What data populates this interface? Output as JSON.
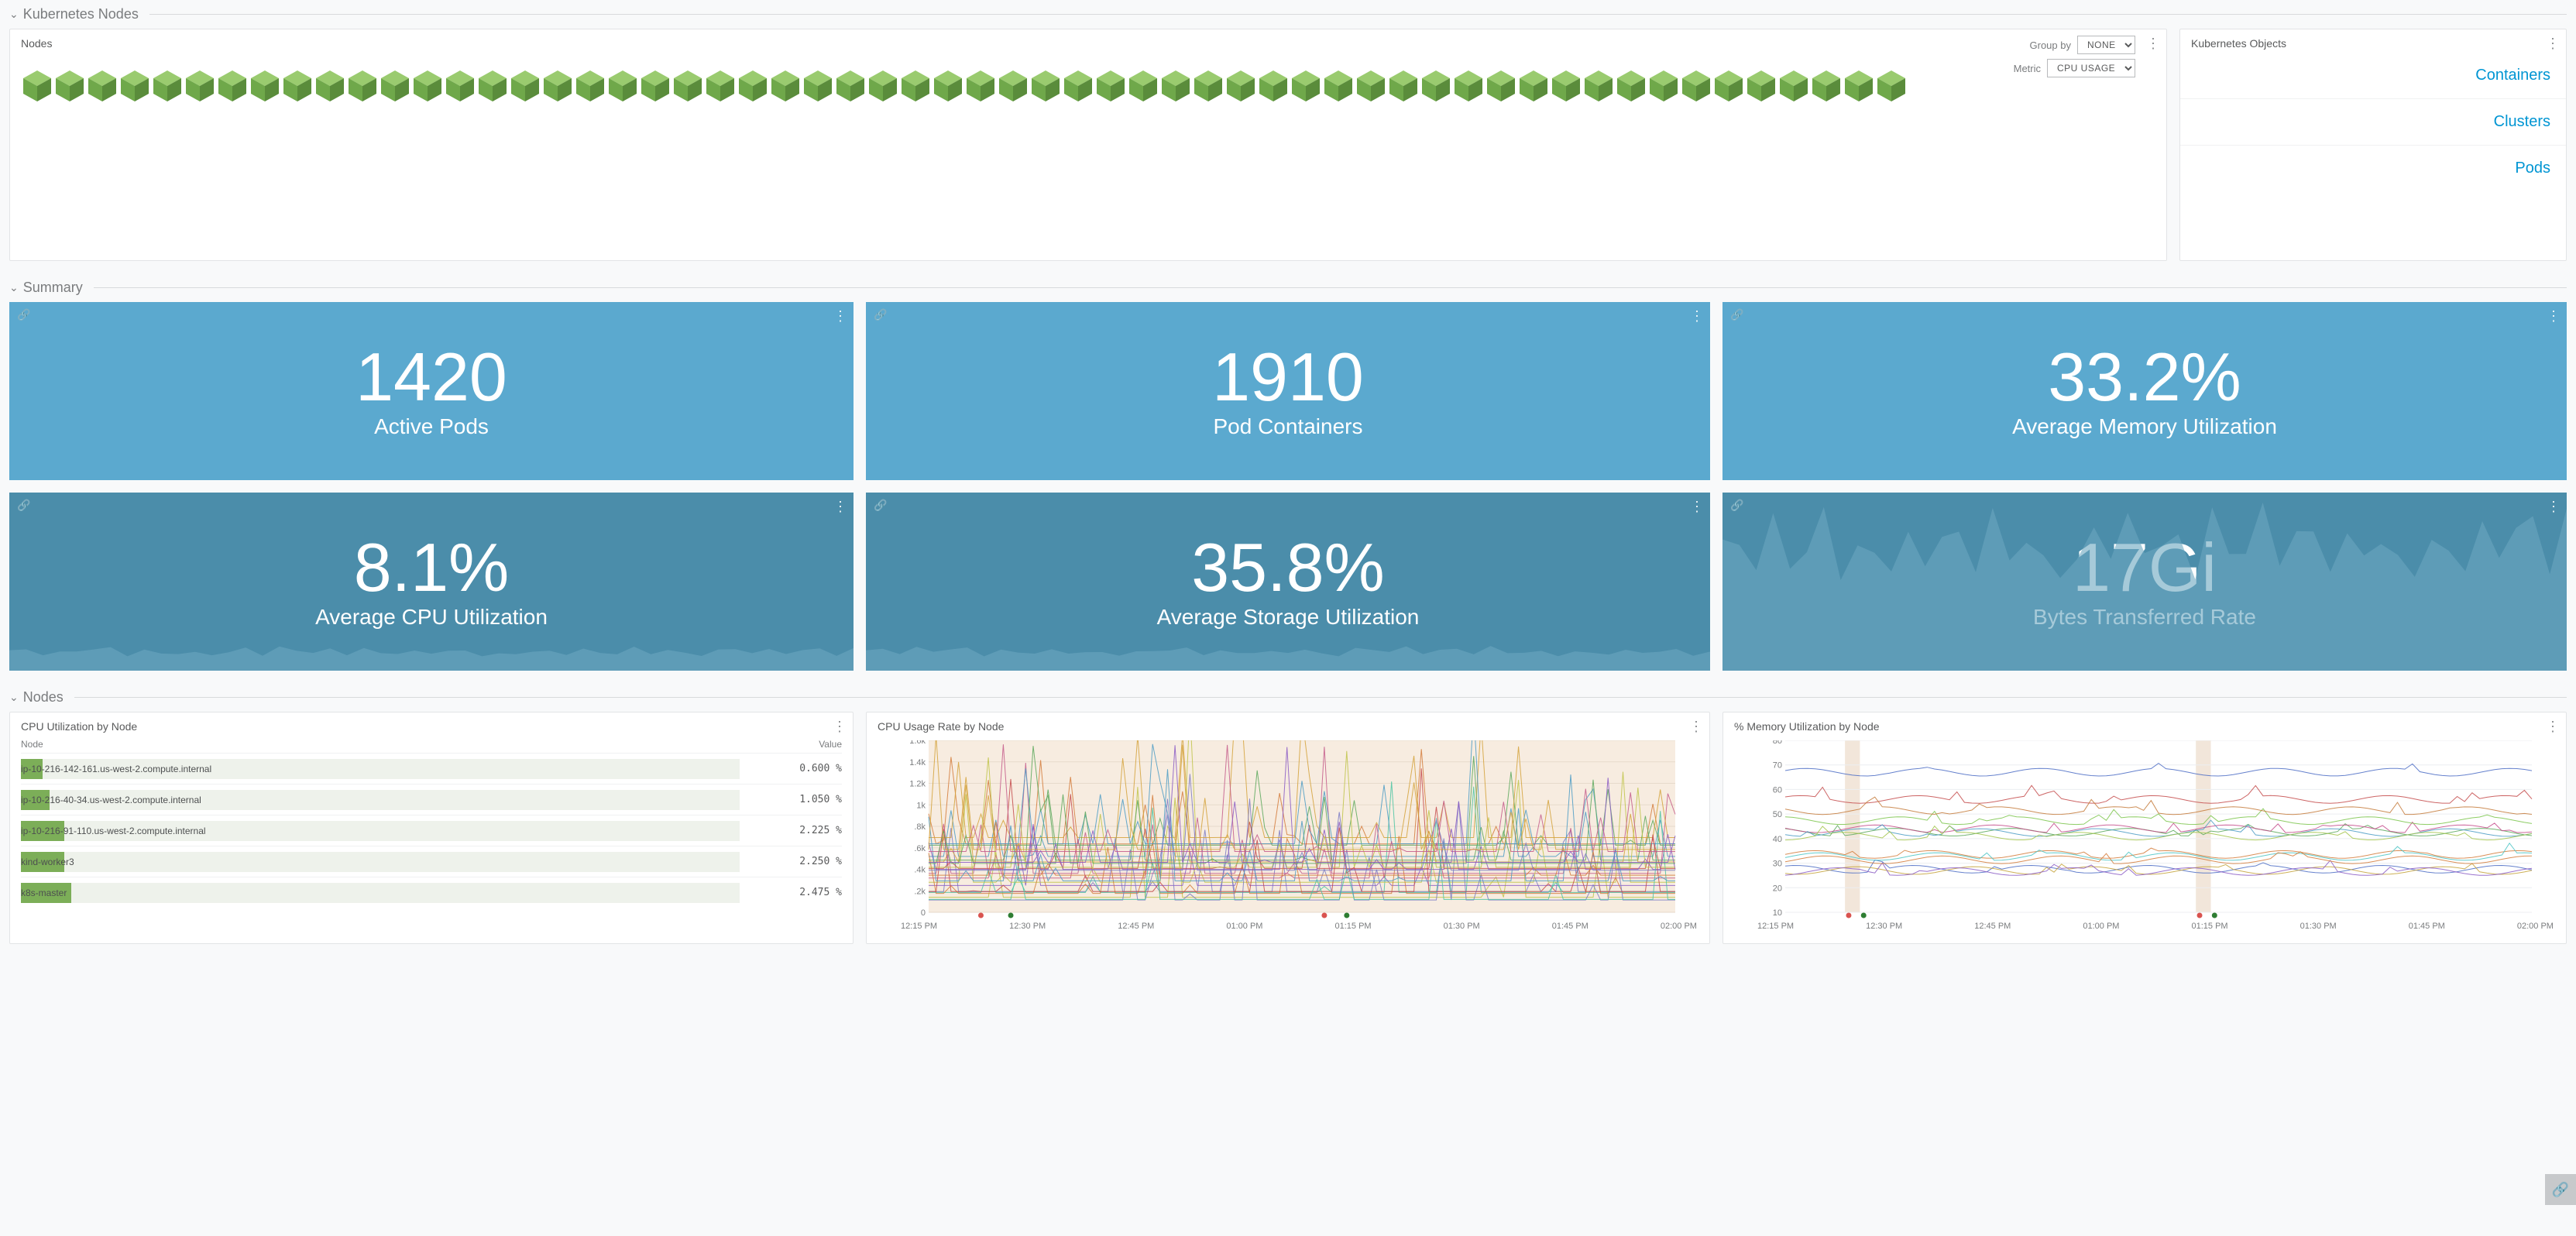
{
  "sections": {
    "kubernetes_nodes": "Kubernetes Nodes",
    "summary": "Summary",
    "nodes": "Nodes"
  },
  "nodes_panel": {
    "title": "Nodes",
    "group_by_label": "Group by",
    "group_by_value": "NONE",
    "metric_label": "Metric",
    "metric_value": "CPU USAGE",
    "cube_count": 58,
    "cube_faces": {
      "top": "#9acb6f",
      "left": "#6fa84a",
      "right": "#5a8c3b"
    }
  },
  "objects_panel": {
    "title": "Kubernetes Objects",
    "links": [
      "Containers",
      "Clusters",
      "Pods"
    ]
  },
  "metrics_row1": [
    {
      "value": "1420",
      "label": "Active Pods",
      "bg": "#5ba9cf",
      "type": "flat"
    },
    {
      "value": "1910",
      "label": "Pod Containers",
      "bg": "#5ba9cf",
      "type": "flat"
    },
    {
      "value": "33.2%",
      "label": "Average Memory Utilization",
      "bg": "#5ba9cf",
      "type": "flat"
    }
  ],
  "metrics_row2": [
    {
      "value": "8.1%",
      "label": "Average CPU Utilization",
      "bg": "#4b8daa",
      "type": "spark_low"
    },
    {
      "value": "35.8%",
      "label": "Average Storage Utilization",
      "bg": "#4b8daa",
      "type": "spark_low"
    },
    {
      "value": "17Gi",
      "label": "Bytes Transferred Rate",
      "bg": "#4b8daa",
      "type": "spark_high"
    }
  ],
  "spark_overlay_color": "#6aa7c0",
  "cpu_by_node": {
    "title": "CPU Utilization by Node",
    "col_node": "Node",
    "col_value": "Value",
    "bar_bg": "#eef2eb",
    "bar_fill": "#7cae58",
    "rows": [
      {
        "name": "ip-10-216-142-161.us-west-2.compute.internal",
        "value": "0.600 %",
        "pct": 3
      },
      {
        "name": "ip-10-216-40-34.us-west-2.compute.internal",
        "value": "1.050 %",
        "pct": 4
      },
      {
        "name": "ip-10-216-91-110.us-west-2.compute.internal",
        "value": "2.225 %",
        "pct": 6
      },
      {
        "name": "kind-worker3",
        "value": "2.250 %",
        "pct": 6
      },
      {
        "name": "k8s-master",
        "value": "2.475 %",
        "pct": 7
      }
    ]
  },
  "cpu_rate_chart": {
    "title": "CPU Usage Rate by Node",
    "y_ticks": [
      "1.6k",
      "1.4k",
      "1.2k",
      "1k",
      ".8k",
      ".6k",
      ".4k",
      ".2k",
      "0"
    ],
    "ylim": [
      0,
      1600
    ],
    "x_ticks": [
      "12:15 PM",
      "12:30 PM",
      "12:45 PM",
      "01:00 PM",
      "01:15 PM",
      "01:30 PM",
      "01:45 PM",
      "02:00 PM"
    ],
    "bg": "#f7ece0",
    "grid": "#e7dacb",
    "line_colors": [
      "#c0c448",
      "#d37b3a",
      "#4a9bc4",
      "#7a7ac4",
      "#c45a8a",
      "#5aa85a",
      "#d4a23a",
      "#8a5ac4",
      "#c44a4a",
      "#4ac4a2"
    ],
    "markers": [
      {
        "x": 0.07,
        "c": "#d9534f"
      },
      {
        "x": 0.11,
        "c": "#2e7d32"
      },
      {
        "x": 0.53,
        "c": "#d9534f"
      },
      {
        "x": 0.56,
        "c": "#2e7d32"
      }
    ]
  },
  "mem_util_chart": {
    "title": "% Memory Utilization by Node",
    "y_ticks": [
      "80",
      "70",
      "60",
      "50",
      "40",
      "30",
      "20",
      "10"
    ],
    "ylim": [
      0,
      90
    ],
    "x_ticks": [
      "12:15 PM",
      "12:30 PM",
      "12:45 PM",
      "01:00 PM",
      "01:15 PM",
      "01:30 PM",
      "01:45 PM",
      "02:00 PM"
    ],
    "bg": "#ffffff",
    "grid": "#eceef0",
    "band_color": "#f2e6da",
    "bands": [
      {
        "x": 0.08,
        "w": 0.02
      },
      {
        "x": 0.55,
        "w": 0.02
      }
    ],
    "line_colors": [
      "#d37b3a",
      "#4a6bc4",
      "#5aa85a",
      "#c44a8a",
      "#c4a23a",
      "#8a5ac4",
      "#4ac4c4",
      "#c44a4a",
      "#7ac44a",
      "#c47a3a",
      "#4a9bc4",
      "#a2c44a"
    ],
    "markers": [
      {
        "x": 0.085,
        "c": "#d9534f"
      },
      {
        "x": 0.105,
        "c": "#2e7d32"
      },
      {
        "x": 0.555,
        "c": "#d9534f"
      },
      {
        "x": 0.575,
        "c": "#2e7d32"
      }
    ]
  }
}
